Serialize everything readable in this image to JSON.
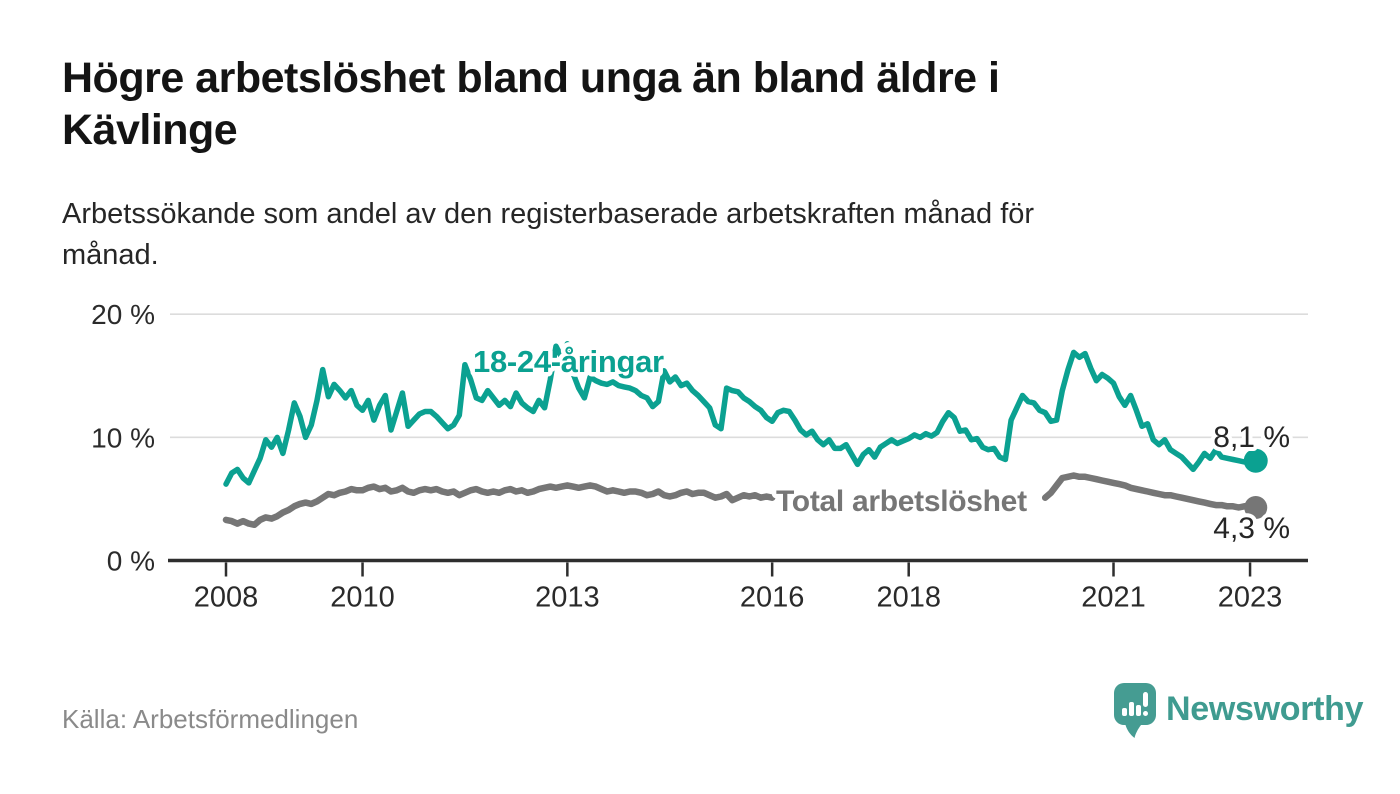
{
  "header": {
    "title_lines": [
      "Högre arbetslöshet bland unga än bland äldre i",
      "Kävlinge"
    ],
    "subtitle_lines": [
      "Arbetssökande som andel av den registerbaserade arbetskraften månad för",
      "månad."
    ]
  },
  "chart_data": {
    "type": "line",
    "title": "Arbetssökande som andel av den registerbaserade arbetskraften månad för månad",
    "x_unit": "month",
    "x_start": "2008-01",
    "x_end": "2023-02",
    "xticks": [
      2008,
      2010,
      2013,
      2016,
      2018,
      2021,
      2023
    ],
    "yticks": [
      {
        "value": 0,
        "label": "0 %"
      },
      {
        "value": 10,
        "label": "10 %"
      },
      {
        "value": 20,
        "label": "20 %"
      }
    ],
    "ylim": [
      0,
      20
    ],
    "grid": "horizontal",
    "legend_position": "inline-labels",
    "series": [
      {
        "name": "Total arbetslöshet",
        "color": "#767676",
        "end_label": "4,3 %",
        "note": "line hidden behind its label from Feb 2016 to Dec 2019 (nulls)",
        "values": [
          3.3,
          3.2,
          3.0,
          3.2,
          3.0,
          2.9,
          3.3,
          3.5,
          3.4,
          3.6,
          3.9,
          4.1,
          4.4,
          4.6,
          4.7,
          4.6,
          4.8,
          5.1,
          5.4,
          5.3,
          5.5,
          5.6,
          5.8,
          5.7,
          5.7,
          5.9,
          6.0,
          5.8,
          5.9,
          5.6,
          5.7,
          5.9,
          5.6,
          5.5,
          5.7,
          5.8,
          5.7,
          5.8,
          5.6,
          5.5,
          5.6,
          5.3,
          5.5,
          5.7,
          5.8,
          5.6,
          5.5,
          5.6,
          5.5,
          5.7,
          5.8,
          5.6,
          5.7,
          5.5,
          5.6,
          5.8,
          5.9,
          6.0,
          5.9,
          6.0,
          6.1,
          6.0,
          5.9,
          6.0,
          6.1,
          6.0,
          5.8,
          5.6,
          5.7,
          5.6,
          5.5,
          5.6,
          5.6,
          5.5,
          5.3,
          5.4,
          5.6,
          5.3,
          5.2,
          5.3,
          5.5,
          5.6,
          5.4,
          5.5,
          5.5,
          5.3,
          5.1,
          5.2,
          5.4,
          4.9,
          5.1,
          5.3,
          5.2,
          5.3,
          5.1,
          5.2,
          5.1,
          null,
          null,
          null,
          null,
          null,
          null,
          null,
          null,
          null,
          null,
          null,
          null,
          null,
          null,
          null,
          null,
          null,
          null,
          null,
          null,
          null,
          null,
          null,
          null,
          null,
          null,
          null,
          null,
          null,
          null,
          null,
          null,
          null,
          null,
          null,
          null,
          null,
          null,
          null,
          null,
          null,
          null,
          null,
          null,
          null,
          null,
          null,
          5.1,
          5.5,
          6.1,
          6.7,
          6.8,
          6.9,
          6.8,
          6.8,
          6.7,
          6.6,
          6.5,
          6.4,
          6.3,
          6.2,
          6.1,
          5.9,
          5.8,
          5.7,
          5.6,
          5.5,
          5.4,
          5.3,
          5.3,
          5.2,
          5.1,
          5.0,
          4.9,
          4.8,
          4.7,
          4.6,
          4.5,
          4.5,
          4.4,
          4.4,
          4.3,
          4.4,
          4.4,
          4.3
        ]
      },
      {
        "name": "18-24-åringar",
        "color": "#0ba191",
        "end_label": "8,1 %",
        "values": [
          6.2,
          7.1,
          7.4,
          6.7,
          6.3,
          7.3,
          8.3,
          9.8,
          9.2,
          10.0,
          8.7,
          10.6,
          12.8,
          11.7,
          10.0,
          11.0,
          13.0,
          15.5,
          13.3,
          14.3,
          13.8,
          13.2,
          13.8,
          12.6,
          12.2,
          13.0,
          11.4,
          12.6,
          13.4,
          10.6,
          12.1,
          13.6,
          10.9,
          11.4,
          11.9,
          12.1,
          12.1,
          11.7,
          11.2,
          10.7,
          11.0,
          11.8,
          15.9,
          14.7,
          13.2,
          13.0,
          13.8,
          13.2,
          12.6,
          13.0,
          12.5,
          13.6,
          12.8,
          12.4,
          12.1,
          13.0,
          12.4,
          14.7,
          17.4,
          16.5,
          17.6,
          15.2,
          14.0,
          13.2,
          14.9,
          14.6,
          14.4,
          14.3,
          14.5,
          14.2,
          14.1,
          14.0,
          13.8,
          13.4,
          13.2,
          12.5,
          12.9,
          15.4,
          14.5,
          14.9,
          14.2,
          14.4,
          13.8,
          13.4,
          12.9,
          12.4,
          11.0,
          10.7,
          14.0,
          13.8,
          13.7,
          13.2,
          12.9,
          12.5,
          12.2,
          11.6,
          11.3,
          12.0,
          12.2,
          12.1,
          11.4,
          10.6,
          10.2,
          10.5,
          9.8,
          9.4,
          9.8,
          9.1,
          9.1,
          9.4,
          8.6,
          7.8,
          8.6,
          9.0,
          8.4,
          9.2,
          9.5,
          9.8,
          9.5,
          9.7,
          9.9,
          10.2,
          10.0,
          10.3,
          10.1,
          10.4,
          11.3,
          12.0,
          11.6,
          10.5,
          10.6,
          9.8,
          9.9,
          9.2,
          9.0,
          9.1,
          8.4,
          8.2,
          11.4,
          12.4,
          13.4,
          12.9,
          12.8,
          12.2,
          12.0,
          11.3,
          11.4,
          13.8,
          15.5,
          16.9,
          16.5,
          16.8,
          15.6,
          14.6,
          15.1,
          14.8,
          14.4,
          13.3,
          12.6,
          13.4,
          12.2,
          10.9,
          11.1,
          9.8,
          9.4,
          9.8,
          9.0,
          8.7,
          8.4,
          7.9,
          7.4,
          8.0,
          8.7,
          8.3,
          9.0,
          8.4,
          8.3,
          8.2,
          8.1,
          8.0,
          8.0,
          8.1
        ]
      }
    ]
  },
  "footer": {
    "source": "Källa: Arbetsförmedlingen",
    "brand": "Newsworthy"
  },
  "colors": {
    "youth_line": "#0ba191",
    "total_line": "#767676",
    "axis": "#2b2b2b",
    "gridline": "#dcdcdc",
    "brand_teal": "#459c92"
  }
}
